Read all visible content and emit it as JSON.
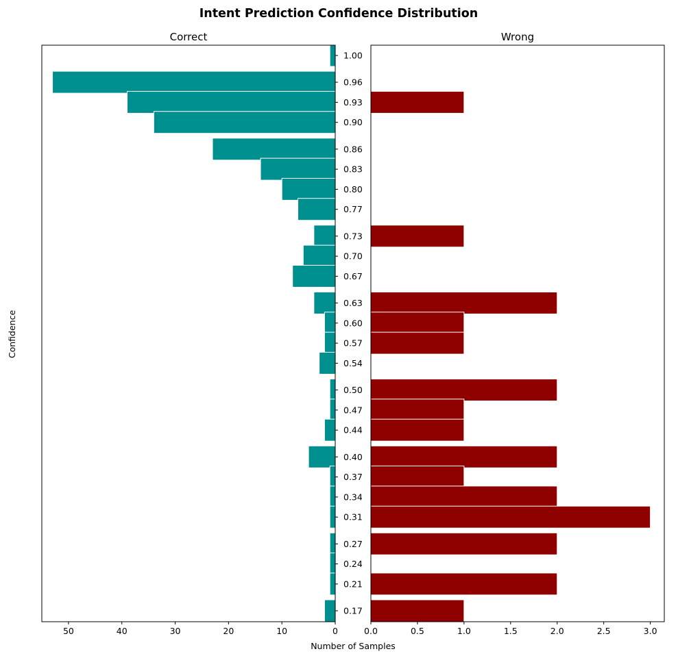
{
  "chart_data": {
    "type": "bar",
    "orientation": "horizontal",
    "title": "Intent Prediction Confidence Distribution",
    "ylabel": "Confidence",
    "xlabel": "Number of Samples",
    "colors": {
      "correct": "#008f8f",
      "wrong": "#8f0000"
    },
    "bins": [
      "1.00",
      "0.96",
      "0.93",
      "0.90",
      "0.86",
      "0.83",
      "0.80",
      "0.77",
      "0.73",
      "0.70",
      "0.67",
      "0.63",
      "0.60",
      "0.57",
      "0.54",
      "0.50",
      "0.47",
      "0.44",
      "0.40",
      "0.37",
      "0.34",
      "0.31",
      "0.27",
      "0.24",
      "0.21",
      "0.17"
    ],
    "series": [
      {
        "name": "Correct",
        "xlim": [
          55,
          0
        ],
        "xticks": [
          "50",
          "40",
          "30",
          "20",
          "10",
          "0"
        ],
        "values": [
          1,
          53,
          39,
          34,
          23,
          14,
          10,
          7,
          4,
          6,
          8,
          4,
          2,
          2,
          3,
          1,
          1,
          2,
          5,
          1,
          1,
          1,
          1,
          1,
          1,
          2
        ]
      },
      {
        "name": "Wrong",
        "xlim": [
          0,
          3.15
        ],
        "xticks": [
          "0.0",
          "0.5",
          "1.0",
          "1.5",
          "2.0",
          "2.5",
          "3.0"
        ],
        "values": [
          0,
          0,
          1,
          0,
          0,
          0,
          0,
          0,
          1,
          0,
          0,
          2,
          1,
          1,
          0,
          2,
          1,
          1,
          2,
          1,
          2,
          3,
          2,
          0,
          2,
          1
        ]
      }
    ],
    "grid": false,
    "legend": "none"
  }
}
